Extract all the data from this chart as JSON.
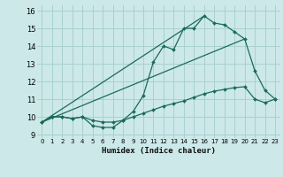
{
  "xlabel": "Humidex (Indice chaleur)",
  "bg_color": "#cce8e8",
  "grid_color": "#aad0d0",
  "line_color": "#1a6b5a",
  "xlim": [
    -0.5,
    23.5
  ],
  "ylim": [
    8.8,
    16.3
  ],
  "xticks": [
    0,
    1,
    2,
    3,
    4,
    5,
    6,
    7,
    8,
    9,
    10,
    11,
    12,
    13,
    14,
    15,
    16,
    17,
    18,
    19,
    20,
    21,
    22,
    23
  ],
  "yticks": [
    9,
    10,
    11,
    12,
    13,
    14,
    15,
    16
  ],
  "series1_x": [
    0,
    1,
    2,
    3,
    4,
    5,
    6,
    7,
    8,
    9,
    10,
    11,
    12,
    13,
    14,
    15,
    16,
    17,
    18,
    19,
    20,
    21,
    22,
    23
  ],
  "series1_y": [
    9.7,
    10.0,
    10.0,
    9.9,
    10.0,
    9.5,
    9.4,
    9.4,
    9.8,
    10.3,
    11.2,
    13.1,
    14.0,
    13.8,
    15.0,
    15.0,
    15.7,
    15.3,
    15.2,
    14.8,
    14.4,
    12.6,
    11.5,
    11.0
  ],
  "series2_x": [
    0,
    1,
    2,
    3,
    4,
    5,
    6,
    7,
    8,
    9,
    10,
    11,
    12,
    13,
    14,
    15,
    16,
    17,
    18,
    19,
    20,
    21,
    22,
    23
  ],
  "series2_y": [
    9.7,
    10.0,
    10.0,
    9.9,
    10.0,
    9.8,
    9.7,
    9.7,
    9.8,
    10.0,
    10.2,
    10.4,
    10.6,
    10.75,
    10.9,
    11.1,
    11.3,
    11.45,
    11.55,
    11.65,
    11.7,
    11.0,
    10.8,
    11.0
  ],
  "series3_x": [
    0,
    16
  ],
  "series3_y": [
    9.7,
    15.7
  ],
  "series4_x": [
    0,
    20
  ],
  "series4_y": [
    9.7,
    14.4
  ]
}
